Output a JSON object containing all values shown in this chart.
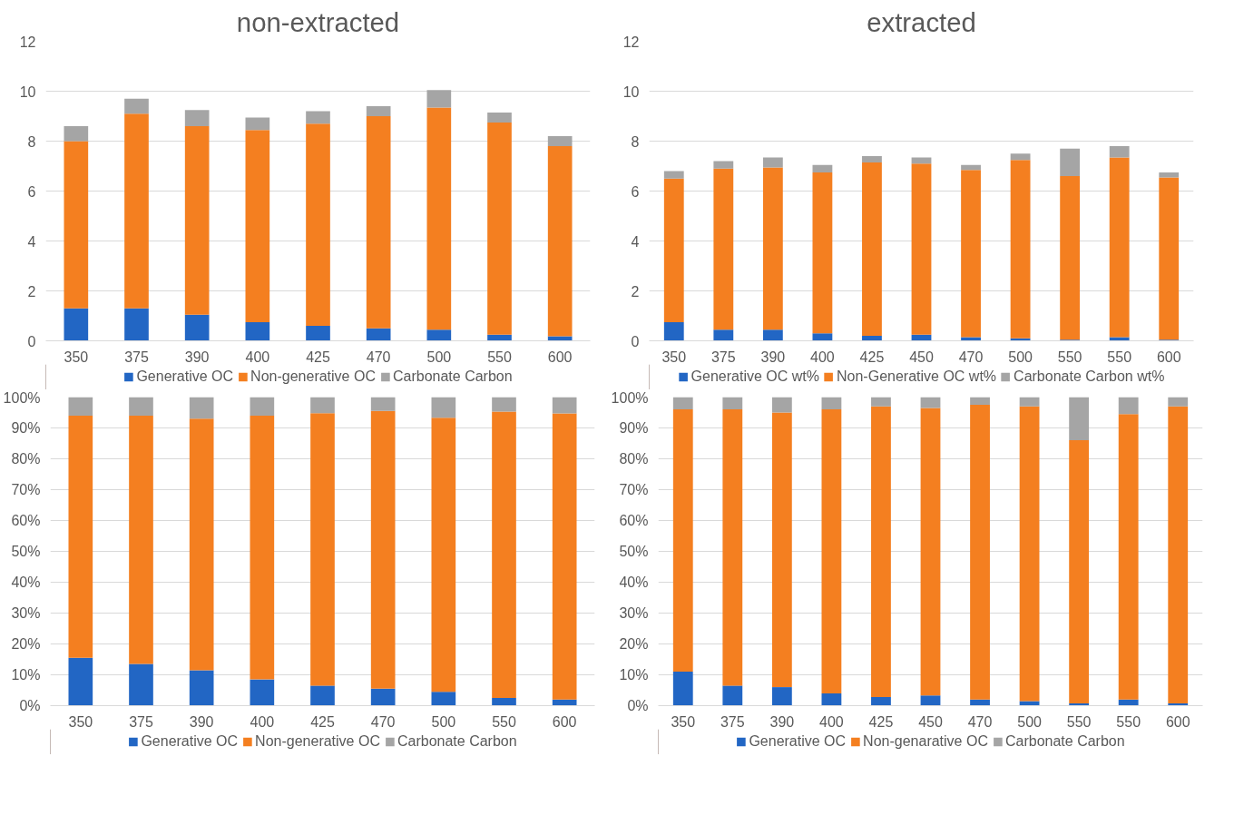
{
  "chart_data": [
    {
      "type": "bar",
      "title": "non-extracted",
      "stacked": true,
      "legend": "bottom",
      "grid": "y",
      "categories": [
        "350",
        "375",
        "390",
        "400",
        "425",
        "470",
        "500",
        "550",
        "600"
      ],
      "ylim": [
        0,
        12
      ],
      "yticks": [
        0,
        2,
        4,
        6,
        8,
        10,
        12
      ],
      "series": [
        {
          "name": "Generative OC",
          "color": "#2266c4",
          "values": [
            1.3,
            1.3,
            1.05,
            0.75,
            0.6,
            0.5,
            0.45,
            0.25,
            0.18
          ]
        },
        {
          "name": "Non-generative OC",
          "color": "#f47f20",
          "values": [
            6.7,
            7.8,
            7.55,
            7.7,
            8.1,
            8.5,
            8.9,
            8.5,
            7.62
          ]
        },
        {
          "name": "Carbonate Carbon",
          "color": "#a5a5a5",
          "values": [
            0.6,
            0.6,
            0.65,
            0.5,
            0.5,
            0.4,
            0.7,
            0.4,
            0.4
          ]
        }
      ]
    },
    {
      "type": "bar",
      "title": "extracted",
      "stacked": true,
      "legend": "bottom",
      "grid": "y",
      "categories": [
        "350",
        "375",
        "390",
        "400",
        "425",
        "450",
        "470",
        "500",
        "550",
        "550",
        "600"
      ],
      "ylim": [
        0,
        12
      ],
      "yticks": [
        0,
        2,
        4,
        6,
        8,
        10,
        12
      ],
      "series": [
        {
          "name": "Generative OC wt%",
          "color": "#2266c4",
          "values": [
            0.75,
            0.45,
            0.45,
            0.3,
            0.2,
            0.25,
            0.15,
            0.1,
            0.05,
            0.15,
            0.05
          ]
        },
        {
          "name": "Non-Generative OC wt%",
          "color": "#f47f20",
          "values": [
            5.75,
            6.45,
            6.5,
            6.45,
            6.95,
            6.85,
            6.7,
            7.15,
            6.55,
            7.2,
            6.5
          ]
        },
        {
          "name": "Carbonate Carbon wt%",
          "color": "#a5a5a5",
          "values": [
            0.3,
            0.3,
            0.4,
            0.3,
            0.25,
            0.25,
            0.2,
            0.25,
            1.1,
            0.45,
            0.2
          ]
        }
      ]
    },
    {
      "type": "bar",
      "stacked": true,
      "legend": "bottom",
      "grid": "y",
      "categories": [
        "350",
        "375",
        "390",
        "400",
        "425",
        "470",
        "500",
        "550",
        "600"
      ],
      "ylim": [
        0,
        100
      ],
      "yticks": [
        {
          "value": 0,
          "label": "0%"
        },
        {
          "value": 10,
          "label": "10%"
        },
        {
          "value": 20,
          "label": "20%"
        },
        {
          "value": 30,
          "label": "30%"
        },
        {
          "value": 40,
          "label": "40%"
        },
        {
          "value": 50,
          "label": "50%"
        },
        {
          "value": 60,
          "label": "60%"
        },
        {
          "value": 70,
          "label": "70%"
        },
        {
          "value": 80,
          "label": "80%"
        },
        {
          "value": 90,
          "label": "90%"
        },
        {
          "value": 100,
          "label": "100%"
        }
      ],
      "series": [
        {
          "name": "Generative OC",
          "color": "#2266c4",
          "values": [
            15.5,
            13.5,
            11.5,
            8.5,
            6.5,
            5.5,
            4.5,
            2.5,
            2
          ]
        },
        {
          "name": "Non-generative OC",
          "color": "#f47f20",
          "values": [
            78.5,
            80.5,
            81.5,
            85.5,
            88.3,
            90,
            88.8,
            92.8,
            92.7
          ]
        },
        {
          "name": "Carbonate Carbon",
          "color": "#a5a5a5",
          "values": [
            6,
            6,
            7,
            6,
            5.2,
            4.5,
            6.7,
            4.7,
            5.3
          ]
        }
      ]
    },
    {
      "type": "bar",
      "stacked": true,
      "legend": "bottom",
      "grid": "y",
      "categories": [
        "350",
        "375",
        "390",
        "400",
        "425",
        "450",
        "470",
        "500",
        "550",
        "550",
        "600"
      ],
      "ylim": [
        0,
        100
      ],
      "yticks": [
        {
          "value": 0,
          "label": "0%"
        },
        {
          "value": 10,
          "label": "10%"
        },
        {
          "value": 20,
          "label": "20%"
        },
        {
          "value": 30,
          "label": "30%"
        },
        {
          "value": 40,
          "label": "40%"
        },
        {
          "value": 50,
          "label": "50%"
        },
        {
          "value": 60,
          "label": "60%"
        },
        {
          "value": 70,
          "label": "70%"
        },
        {
          "value": 80,
          "label": "80%"
        },
        {
          "value": 90,
          "label": "90%"
        },
        {
          "value": 100,
          "label": "100%"
        }
      ],
      "series": [
        {
          "name": "Generative OC",
          "color": "#2266c4",
          "values": [
            11,
            6.5,
            6,
            4,
            2.8,
            3.3,
            2,
            1.5,
            0.7,
            2,
            0.7
          ]
        },
        {
          "name": "Non-genarative OC",
          "color": "#f47f20",
          "values": [
            85,
            89.5,
            89,
            92,
            94.2,
            93.2,
            95.5,
            95.5,
            85.3,
            92.5,
            96.3
          ]
        },
        {
          "name": "Carbonate Carbon",
          "color": "#a5a5a5",
          "values": [
            4,
            4,
            5,
            4,
            3,
            3.5,
            2.5,
            3,
            14,
            5.5,
            3
          ]
        }
      ]
    }
  ]
}
